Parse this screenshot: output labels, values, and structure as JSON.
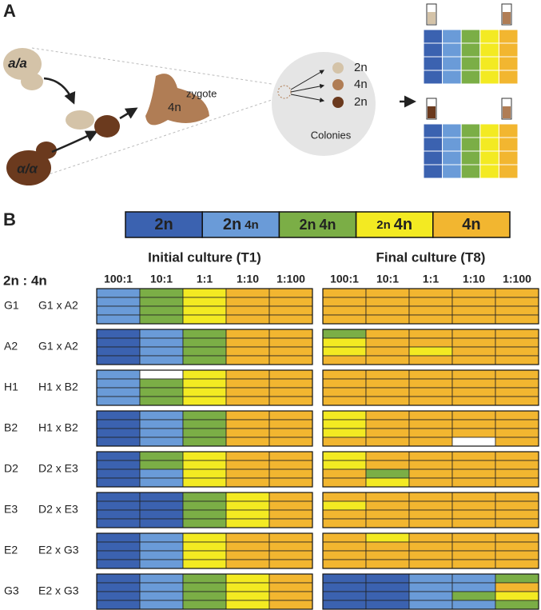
{
  "panel_a": {
    "label": "A",
    "strain_1": "a/a",
    "strain_2": "α/α",
    "zygote": "zygote",
    "zygote_ploidy": "4n",
    "colonies": [
      "2n",
      "4n",
      "2n"
    ],
    "colonies_label": "Colonies"
  },
  "panel_b": {
    "label": "B",
    "legend": [
      {
        "parts": [
          "2n"
        ],
        "color": "#3b62b0"
      },
      {
        "parts": [
          "2n",
          "4n"
        ],
        "color": "#6a9bd8"
      },
      {
        "parts": [
          "2n",
          "4n"
        ],
        "color": "#7bae46"
      },
      {
        "parts": [
          "2n",
          "4n"
        ],
        "color": "#f3ea22"
      },
      {
        "parts": [
          "4n"
        ],
        "color": "#f2b630"
      }
    ],
    "ratio_header": "2n : 4n",
    "cultures": [
      {
        "title": "Initial culture (T1)",
        "columns": [
          "100:1",
          "10:1",
          "1:1",
          "1:10",
          "1:100"
        ]
      },
      {
        "title": "Final culture (T8)",
        "columns": [
          "100:1",
          "10:1",
          "1:1",
          "1:10",
          "1:100"
        ]
      }
    ],
    "rows": [
      {
        "strain": "G1",
        "cross": "G1 x A2",
        "initial": [
          [
            "#6a9bd8",
            "#6a9bd8",
            "#6a9bd8",
            "#6a9bd8"
          ],
          [
            "#7bae46",
            "#7bae46",
            "#7bae46",
            "#7bae46"
          ],
          [
            "#f3ea22",
            "#f3ea22",
            "#f3ea22",
            "#f3ea22"
          ],
          [
            "#f2b630",
            "#f2b630",
            "#f2b630",
            "#f2b630"
          ],
          [
            "#f2b630",
            "#f2b630",
            "#f2b630",
            "#f2b630"
          ]
        ],
        "final": [
          [
            "#f2b630",
            "#f2b630",
            "#f2b630",
            "#f2b630"
          ],
          [
            "#f2b630",
            "#f2b630",
            "#f2b630",
            "#f2b630"
          ],
          [
            "#f2b630",
            "#f2b630",
            "#f2b630",
            "#f2b630"
          ],
          [
            "#f2b630",
            "#f2b630",
            "#f2b630",
            "#f2b630"
          ],
          [
            "#f2b630",
            "#f2b630",
            "#f2b630",
            "#f2b630"
          ]
        ]
      },
      {
        "strain": "A2",
        "cross": "G1 x A2",
        "initial": [
          [
            "#3b62b0",
            "#3b62b0",
            "#3b62b0",
            "#3b62b0"
          ],
          [
            "#6a9bd8",
            "#6a9bd8",
            "#6a9bd8",
            "#6a9bd8"
          ],
          [
            "#7bae46",
            "#7bae46",
            "#7bae46",
            "#7bae46"
          ],
          [
            "#f2b630",
            "#f2b630",
            "#f2b630",
            "#f2b630"
          ],
          [
            "#f2b630",
            "#f2b630",
            "#f2b630",
            "#f2b630"
          ]
        ],
        "final": [
          [
            "#7bae46",
            "#f3ea22",
            "#f3ea22",
            "#f2b630"
          ],
          [
            "#f2b630",
            "#f2b630",
            "#f2b630",
            "#f2b630"
          ],
          [
            "#f2b630",
            "#f2b630",
            "#f3ea22",
            "#f2b630"
          ],
          [
            "#f2b630",
            "#f2b630",
            "#f2b630",
            "#f2b630"
          ],
          [
            "#f2b630",
            "#f2b630",
            "#f2b630",
            "#f2b630"
          ]
        ]
      },
      {
        "strain": "H1",
        "cross": "H1 x B2",
        "initial": [
          [
            "#6a9bd8",
            "#6a9bd8",
            "#6a9bd8",
            "#6a9bd8"
          ],
          [
            "#ffffff",
            "#7bae46",
            "#7bae46",
            "#7bae46"
          ],
          [
            "#f3ea22",
            "#f3ea22",
            "#f3ea22",
            "#f3ea22"
          ],
          [
            "#f2b630",
            "#f2b630",
            "#f2b630",
            "#f2b630"
          ],
          [
            "#f2b630",
            "#f2b630",
            "#f2b630",
            "#f2b630"
          ]
        ],
        "final": [
          [
            "#f2b630",
            "#f2b630",
            "#f2b630",
            "#f2b630"
          ],
          [
            "#f2b630",
            "#f2b630",
            "#f2b630",
            "#f2b630"
          ],
          [
            "#f2b630",
            "#f2b630",
            "#f2b630",
            "#f2b630"
          ],
          [
            "#f2b630",
            "#f2b630",
            "#f2b630",
            "#f2b630"
          ],
          [
            "#f2b630",
            "#f2b630",
            "#f2b630",
            "#f2b630"
          ]
        ]
      },
      {
        "strain": "B2",
        "cross": "H1 x B2",
        "initial": [
          [
            "#3b62b0",
            "#3b62b0",
            "#3b62b0",
            "#3b62b0"
          ],
          [
            "#6a9bd8",
            "#6a9bd8",
            "#6a9bd8",
            "#6a9bd8"
          ],
          [
            "#7bae46",
            "#7bae46",
            "#7bae46",
            "#7bae46"
          ],
          [
            "#f2b630",
            "#f2b630",
            "#f2b630",
            "#f2b630"
          ],
          [
            "#f2b630",
            "#f2b630",
            "#f2b630",
            "#f2b630"
          ]
        ],
        "final": [
          [
            "#f3ea22",
            "#f3ea22",
            "#f3ea22",
            "#f2b630"
          ],
          [
            "#f2b630",
            "#f2b630",
            "#f2b630",
            "#f2b630"
          ],
          [
            "#f2b630",
            "#f2b630",
            "#f2b630",
            "#f2b630"
          ],
          [
            "#f2b630",
            "#f2b630",
            "#f2b630",
            "#ffffff"
          ],
          [
            "#f2b630",
            "#f2b630",
            "#f2b630",
            "#f2b630"
          ]
        ]
      },
      {
        "strain": "D2",
        "cross": "D2 x E3",
        "initial": [
          [
            "#3b62b0",
            "#3b62b0",
            "#3b62b0",
            "#3b62b0"
          ],
          [
            "#7bae46",
            "#7bae46",
            "#6a9bd8",
            "#6a9bd8"
          ],
          [
            "#f3ea22",
            "#f3ea22",
            "#f3ea22",
            "#f3ea22"
          ],
          [
            "#f2b630",
            "#f2b630",
            "#f2b630",
            "#f2b630"
          ],
          [
            "#f2b630",
            "#f2b630",
            "#f2b630",
            "#f2b630"
          ]
        ],
        "final": [
          [
            "#f3ea22",
            "#f3ea22",
            "#f2b630",
            "#f2b630"
          ],
          [
            "#f2b630",
            "#f2b630",
            "#7bae46",
            "#f3ea22"
          ],
          [
            "#f2b630",
            "#f2b630",
            "#f2b630",
            "#f2b630"
          ],
          [
            "#f2b630",
            "#f2b630",
            "#f2b630",
            "#f2b630"
          ],
          [
            "#f2b630",
            "#f2b630",
            "#f2b630",
            "#f2b630"
          ]
        ]
      },
      {
        "strain": "E3",
        "cross": "D2 x E3",
        "initial": [
          [
            "#3b62b0",
            "#3b62b0",
            "#3b62b0",
            "#3b62b0"
          ],
          [
            "#3b62b0",
            "#3b62b0",
            "#3b62b0",
            "#3b62b0"
          ],
          [
            "#7bae46",
            "#7bae46",
            "#7bae46",
            "#7bae46"
          ],
          [
            "#f3ea22",
            "#f3ea22",
            "#f3ea22",
            "#f3ea22"
          ],
          [
            "#f2b630",
            "#f2b630",
            "#f2b630",
            "#f2b630"
          ]
        ],
        "final": [
          [
            "#f2b630",
            "#f3ea22",
            "#f2b630",
            "#f2b630"
          ],
          [
            "#f2b630",
            "#f2b630",
            "#f2b630",
            "#f2b630"
          ],
          [
            "#f2b630",
            "#f2b630",
            "#f2b630",
            "#f2b630"
          ],
          [
            "#f2b630",
            "#f2b630",
            "#f2b630",
            "#f2b630"
          ],
          [
            "#f2b630",
            "#f2b630",
            "#f2b630",
            "#f2b630"
          ]
        ]
      },
      {
        "strain": "E2",
        "cross": "E2 x G3",
        "initial": [
          [
            "#3b62b0",
            "#3b62b0",
            "#3b62b0",
            "#3b62b0"
          ],
          [
            "#6a9bd8",
            "#6a9bd8",
            "#6a9bd8",
            "#6a9bd8"
          ],
          [
            "#f3ea22",
            "#f3ea22",
            "#f3ea22",
            "#f3ea22"
          ],
          [
            "#f2b630",
            "#f2b630",
            "#f2b630",
            "#f2b630"
          ],
          [
            "#f2b630",
            "#f2b630",
            "#f2b630",
            "#f2b630"
          ]
        ],
        "final": [
          [
            "#f2b630",
            "#f2b630",
            "#f2b630",
            "#f2b630"
          ],
          [
            "#f3ea22",
            "#f2b630",
            "#f2b630",
            "#f2b630"
          ],
          [
            "#f2b630",
            "#f2b630",
            "#f2b630",
            "#f2b630"
          ],
          [
            "#f2b630",
            "#f2b630",
            "#f2b630",
            "#f2b630"
          ],
          [
            "#f2b630",
            "#f2b630",
            "#f2b630",
            "#f2b630"
          ]
        ]
      },
      {
        "strain": "G3",
        "cross": "E2 x G3",
        "initial": [
          [
            "#3b62b0",
            "#3b62b0",
            "#3b62b0",
            "#3b62b0"
          ],
          [
            "#6a9bd8",
            "#6a9bd8",
            "#6a9bd8",
            "#6a9bd8"
          ],
          [
            "#7bae46",
            "#7bae46",
            "#7bae46",
            "#7bae46"
          ],
          [
            "#f3ea22",
            "#f3ea22",
            "#f3ea22",
            "#f3ea22"
          ],
          [
            "#f2b630",
            "#f2b630",
            "#f2b630",
            "#f2b630"
          ]
        ],
        "final": [
          [
            "#3b62b0",
            "#3b62b0",
            "#3b62b0",
            "#3b62b0"
          ],
          [
            "#3b62b0",
            "#3b62b0",
            "#3b62b0",
            "#3b62b0"
          ],
          [
            "#6a9bd8",
            "#6a9bd8",
            "#6a9bd8",
            "#6a9bd8"
          ],
          [
            "#6a9bd8",
            "#6a9bd8",
            "#7bae46",
            "#6a9bd8"
          ],
          [
            "#7bae46",
            "#f2b630",
            "#f3ea22",
            "#7bae46"
          ]
        ]
      }
    ]
  }
}
